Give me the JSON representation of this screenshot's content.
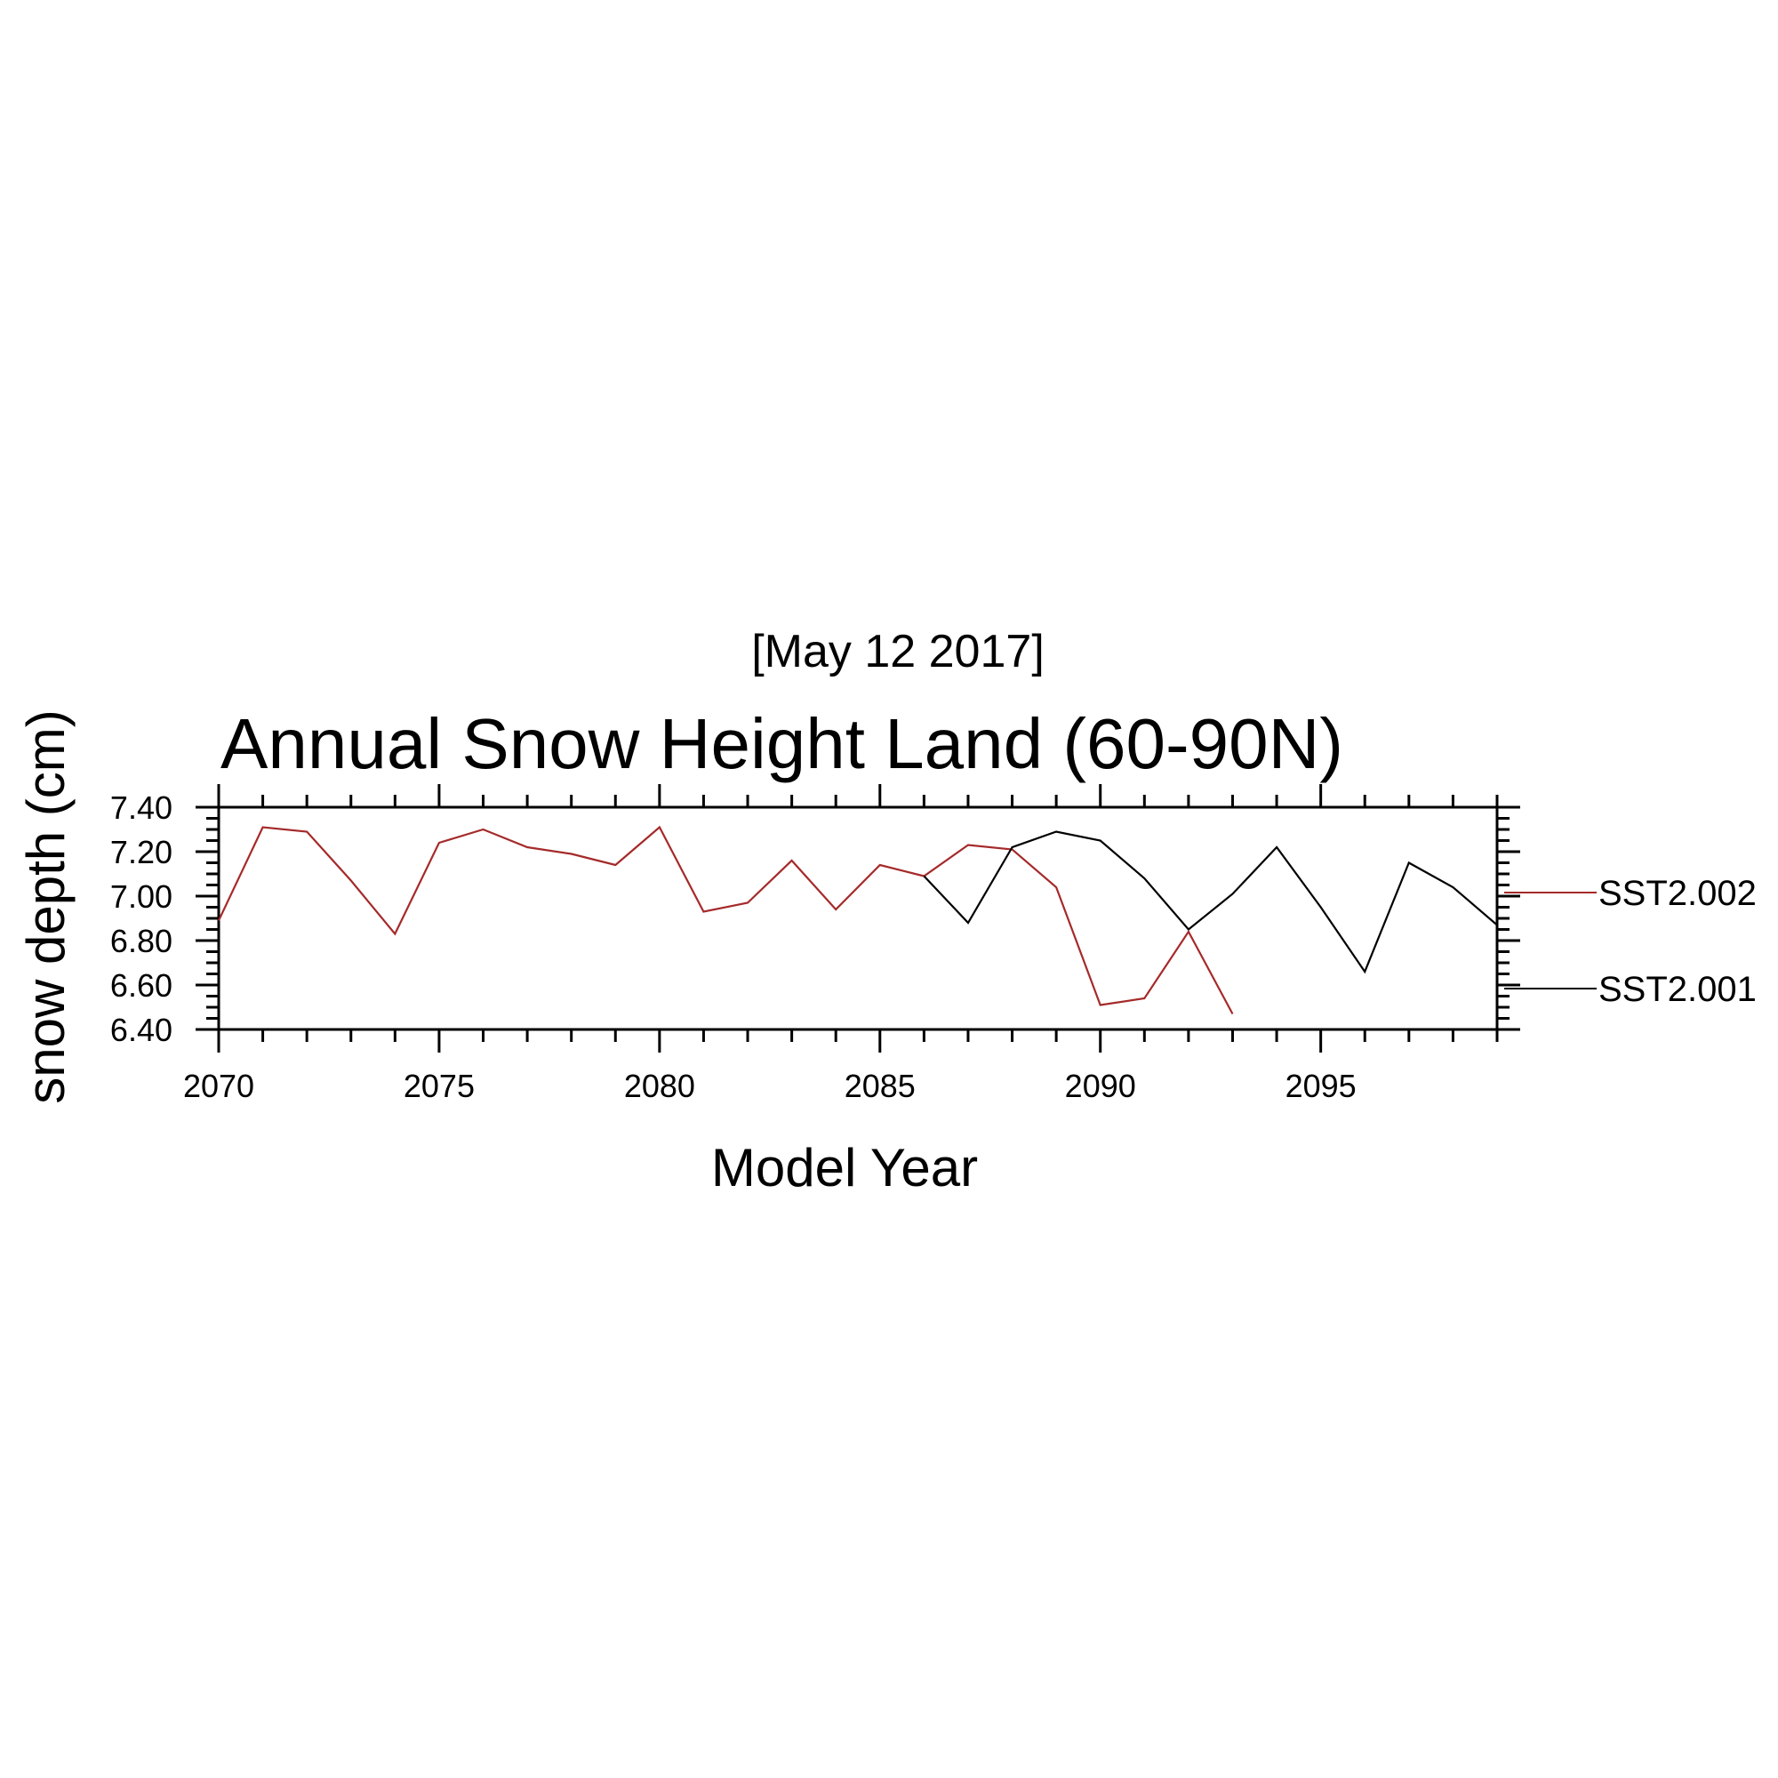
{
  "header": {
    "date": "[May 12 2017]"
  },
  "chart_data": {
    "type": "line",
    "title": "Annual Snow Height Land (60-90N)",
    "xlabel": "Model Year",
    "ylabel": "snow depth (cm)",
    "xlim": [
      2070,
      2099
    ],
    "ylim": [
      6.4,
      7.4
    ],
    "x_ticks": [
      2070,
      2075,
      2080,
      2085,
      2090,
      2095
    ],
    "x_tick_labels": [
      "2070",
      "2075",
      "2080",
      "2085",
      "2090",
      "2095"
    ],
    "y_ticks": [
      6.4,
      6.6,
      6.8,
      7.0,
      7.2,
      7.4
    ],
    "y_tick_labels": [
      "6.40",
      "6.60",
      "6.80",
      "7.00",
      "7.20",
      "7.40"
    ],
    "legend_position": "right",
    "grid": false,
    "series": [
      {
        "name": "SST2.002",
        "color": "#a52a2a",
        "x": [
          2070,
          2071,
          2072,
          2073,
          2074,
          2075,
          2076,
          2077,
          2078,
          2079,
          2080,
          2081,
          2082,
          2083,
          2084,
          2085,
          2086,
          2087,
          2088,
          2089,
          2090,
          2091,
          2092,
          2093
        ],
        "values": [
          6.89,
          7.31,
          7.29,
          7.07,
          6.83,
          7.24,
          7.3,
          7.22,
          7.19,
          7.14,
          7.31,
          6.93,
          6.97,
          7.16,
          6.94,
          7.14,
          7.09,
          7.23,
          7.21,
          7.04,
          6.51,
          6.54,
          6.84,
          6.47
        ]
      },
      {
        "name": "SST2.001",
        "color": "#000000",
        "x": [
          2086,
          2087,
          2088,
          2089,
          2090,
          2091,
          2092,
          2093,
          2094,
          2095,
          2096,
          2097,
          2098,
          2099
        ],
        "values": [
          7.09,
          6.88,
          7.22,
          7.29,
          7.25,
          7.08,
          6.85,
          7.01,
          7.22,
          6.95,
          6.66,
          7.15,
          7.04,
          6.87
        ]
      }
    ]
  }
}
